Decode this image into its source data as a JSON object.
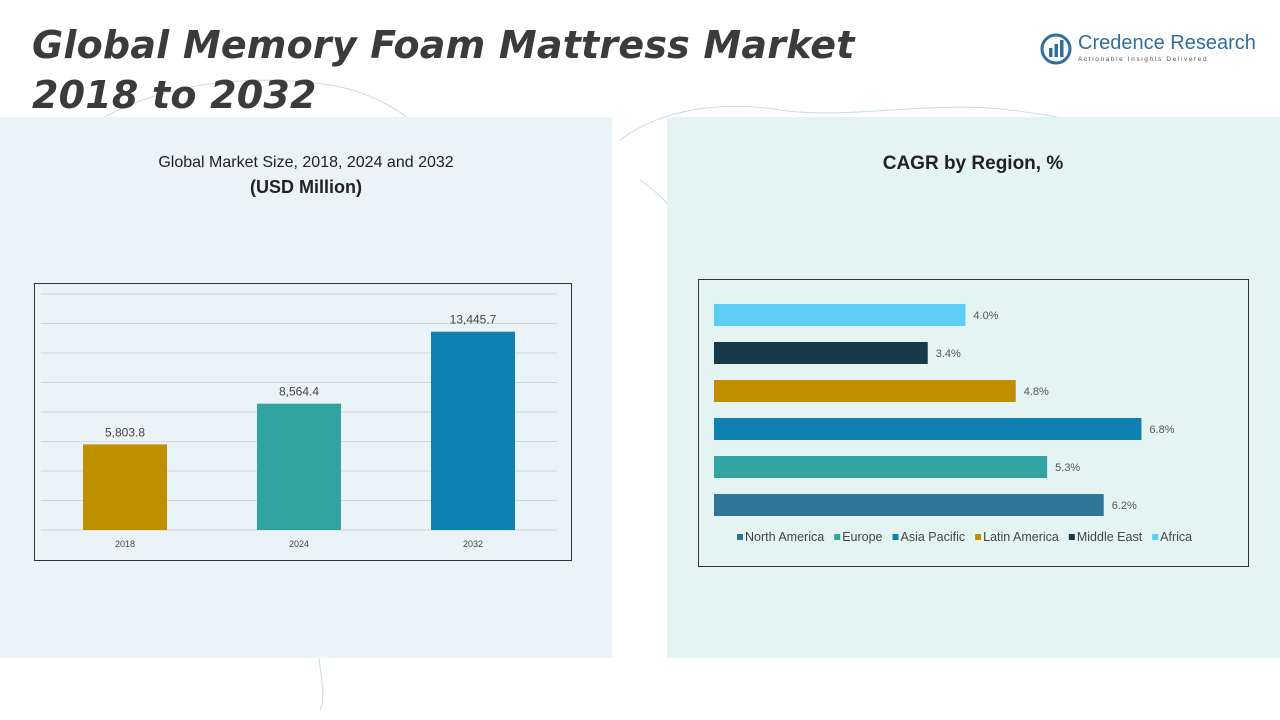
{
  "title_line1": "Global Memory Foam Mattress Market",
  "title_line2": "2018 to 2032",
  "logo": {
    "name": "Credence Research",
    "tagline": "Actionable Insights Delivered"
  },
  "colors": {
    "bar_2018": "#c08f00",
    "bar_2024": "#31a3a0",
    "bar_2032": "#0e80b2"
  },
  "chart_data": [
    {
      "type": "bar",
      "title": "Global Market Size, 2018, 2024 and 2032",
      "subtitle": "(USD Million)",
      "categories": [
        "2018",
        "2024",
        "2032"
      ],
      "values": [
        5803.8,
        8564.4,
        13445.7
      ],
      "labels": [
        "5,803.8",
        "8,564.4",
        "13,445.7"
      ],
      "colors": [
        "#c08f00",
        "#31a3a0",
        "#0e80b2"
      ],
      "ylim": [
        0,
        16000
      ],
      "grid": true
    },
    {
      "type": "bar",
      "orientation": "horizontal",
      "title": "CAGR by Region, %",
      "categories": [
        "Africa",
        "Middle East",
        "Latin America",
        "Asia Pacific",
        "Europe",
        "North America"
      ],
      "values": [
        4.0,
        3.4,
        4.8,
        6.8,
        5.3,
        6.2
      ],
      "labels": [
        "4.0%",
        "3.4%",
        "4.8%",
        "6.8%",
        "5.3%",
        "6.2%"
      ],
      "colors": [
        "#5ccdf4",
        "#17394a",
        "#c08f00",
        "#0e80b2",
        "#31a3a0",
        "#2e7799"
      ],
      "legend": [
        "North America",
        "Europe",
        "Asia Pacific",
        "Latin America",
        "Middle East",
        "Africa"
      ],
      "legend_colors": [
        "#2e7799",
        "#31a3a0",
        "#0e80b2",
        "#c08f00",
        "#17394a",
        "#5ccdf4"
      ],
      "legend_position": "bottom",
      "xlim": [
        0,
        7
      ]
    }
  ]
}
